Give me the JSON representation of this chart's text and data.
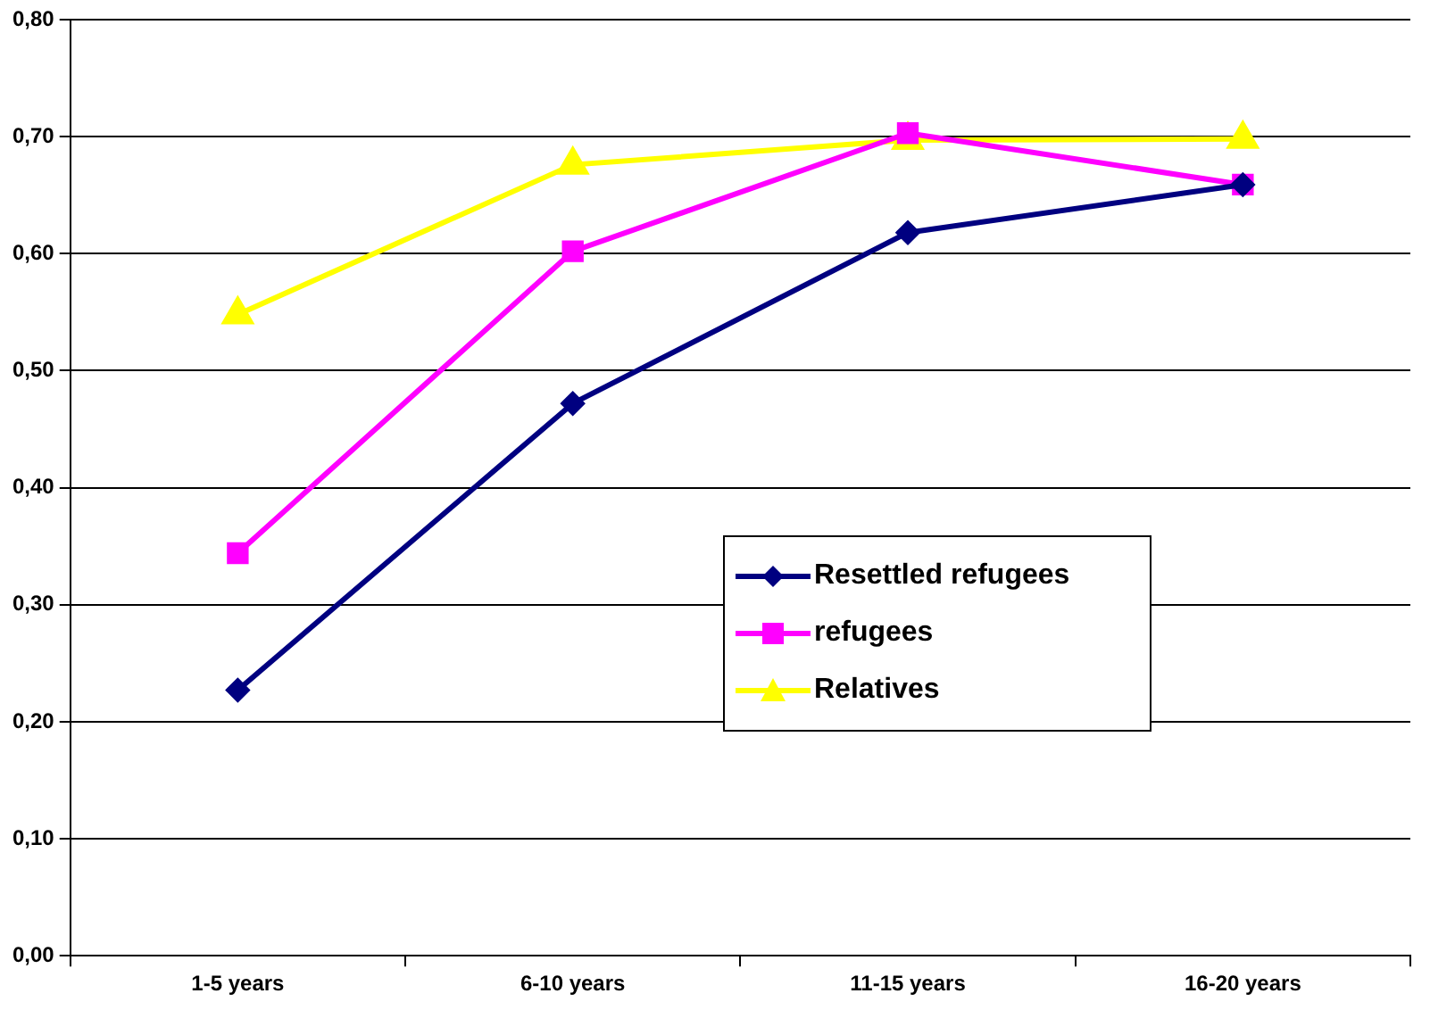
{
  "chart_data": {
    "type": "line",
    "categories": [
      "1-5 years",
      "6-10 years",
      "11-15 years",
      "16-20 years"
    ],
    "series": [
      {
        "name": "Resettled refugees",
        "color": "#000080",
        "marker": "diamond",
        "values": [
          0.227,
          0.472,
          0.618,
          0.659
        ]
      },
      {
        "name": "refugees",
        "color": "#ff00ff",
        "marker": "square",
        "values": [
          0.344,
          0.602,
          0.703,
          0.659
        ]
      },
      {
        "name": "Relatives",
        "color": "#ffff00",
        "marker": "triangle",
        "values": [
          0.548,
          0.676,
          0.697,
          0.698
        ]
      }
    ],
    "ylim": [
      0,
      0.8
    ],
    "yticks": [
      {
        "value": 0,
        "label": "0,00"
      },
      {
        "value": 0.1,
        "label": "0,10"
      },
      {
        "value": 0.2,
        "label": "0,20"
      },
      {
        "value": 0.3,
        "label": "0,30"
      },
      {
        "value": 0.4,
        "label": "0,40"
      },
      {
        "value": 0.5,
        "label": "0,50"
      },
      {
        "value": 0.6,
        "label": "0,60"
      },
      {
        "value": 0.7,
        "label": "0,70"
      },
      {
        "value": 0.8,
        "label": "0,80"
      }
    ],
    "grid": "y",
    "legend": "center",
    "line_style": "solid"
  }
}
